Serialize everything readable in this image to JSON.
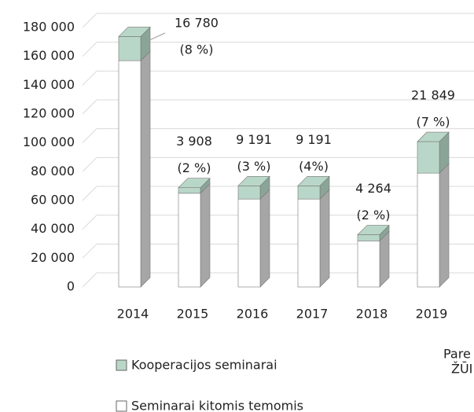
{
  "chart_data": {
    "type": "bar3d_stacked",
    "categories": [
      "2014",
      "2015",
      "2016",
      "2017",
      "2018",
      "2019"
    ],
    "series": [
      {
        "name": "Seminarai kitomis temomis",
        "color": "#ffffff",
        "side": "#a6a6a6",
        "values": [
          157000,
          65000,
          61000,
          61000,
          32000,
          79000
        ]
      },
      {
        "name": "Kooperacijos seminarai",
        "color": "#b9d7c8",
        "side": "#8aa597",
        "values": [
          16780,
          3908,
          9191,
          9191,
          4264,
          21849
        ],
        "value_labels": [
          "16 780",
          "3 908",
          "9 191",
          "9 191",
          "4 264",
          "21 849"
        ]
      }
    ],
    "share_labels": [
      "(8 %)",
      "(2 %)",
      "(3 %)",
      "(4%)",
      "(2 %)",
      "(7 %)"
    ],
    "ylim": [
      0,
      180000
    ],
    "yticks": [
      0,
      {
        "value": 20000,
        "label": "20 000"
      },
      {
        "value": 40000,
        "label": "40 000"
      },
      {
        "value": 60000,
        "label": "60 000"
      },
      {
        "value": 80000,
        "label": "80 000"
      },
      {
        "value": 100000,
        "label": "100 000"
      },
      {
        "value": 120000,
        "label": "120 000"
      },
      {
        "value": 140000,
        "label": "140 000"
      },
      {
        "value": 160000,
        "label": "160 000"
      },
      {
        "value": 180000,
        "label": "180 000"
      }
    ],
    "grid": true,
    "annotations": [
      "Pare",
      "ŽŪI"
    ]
  }
}
